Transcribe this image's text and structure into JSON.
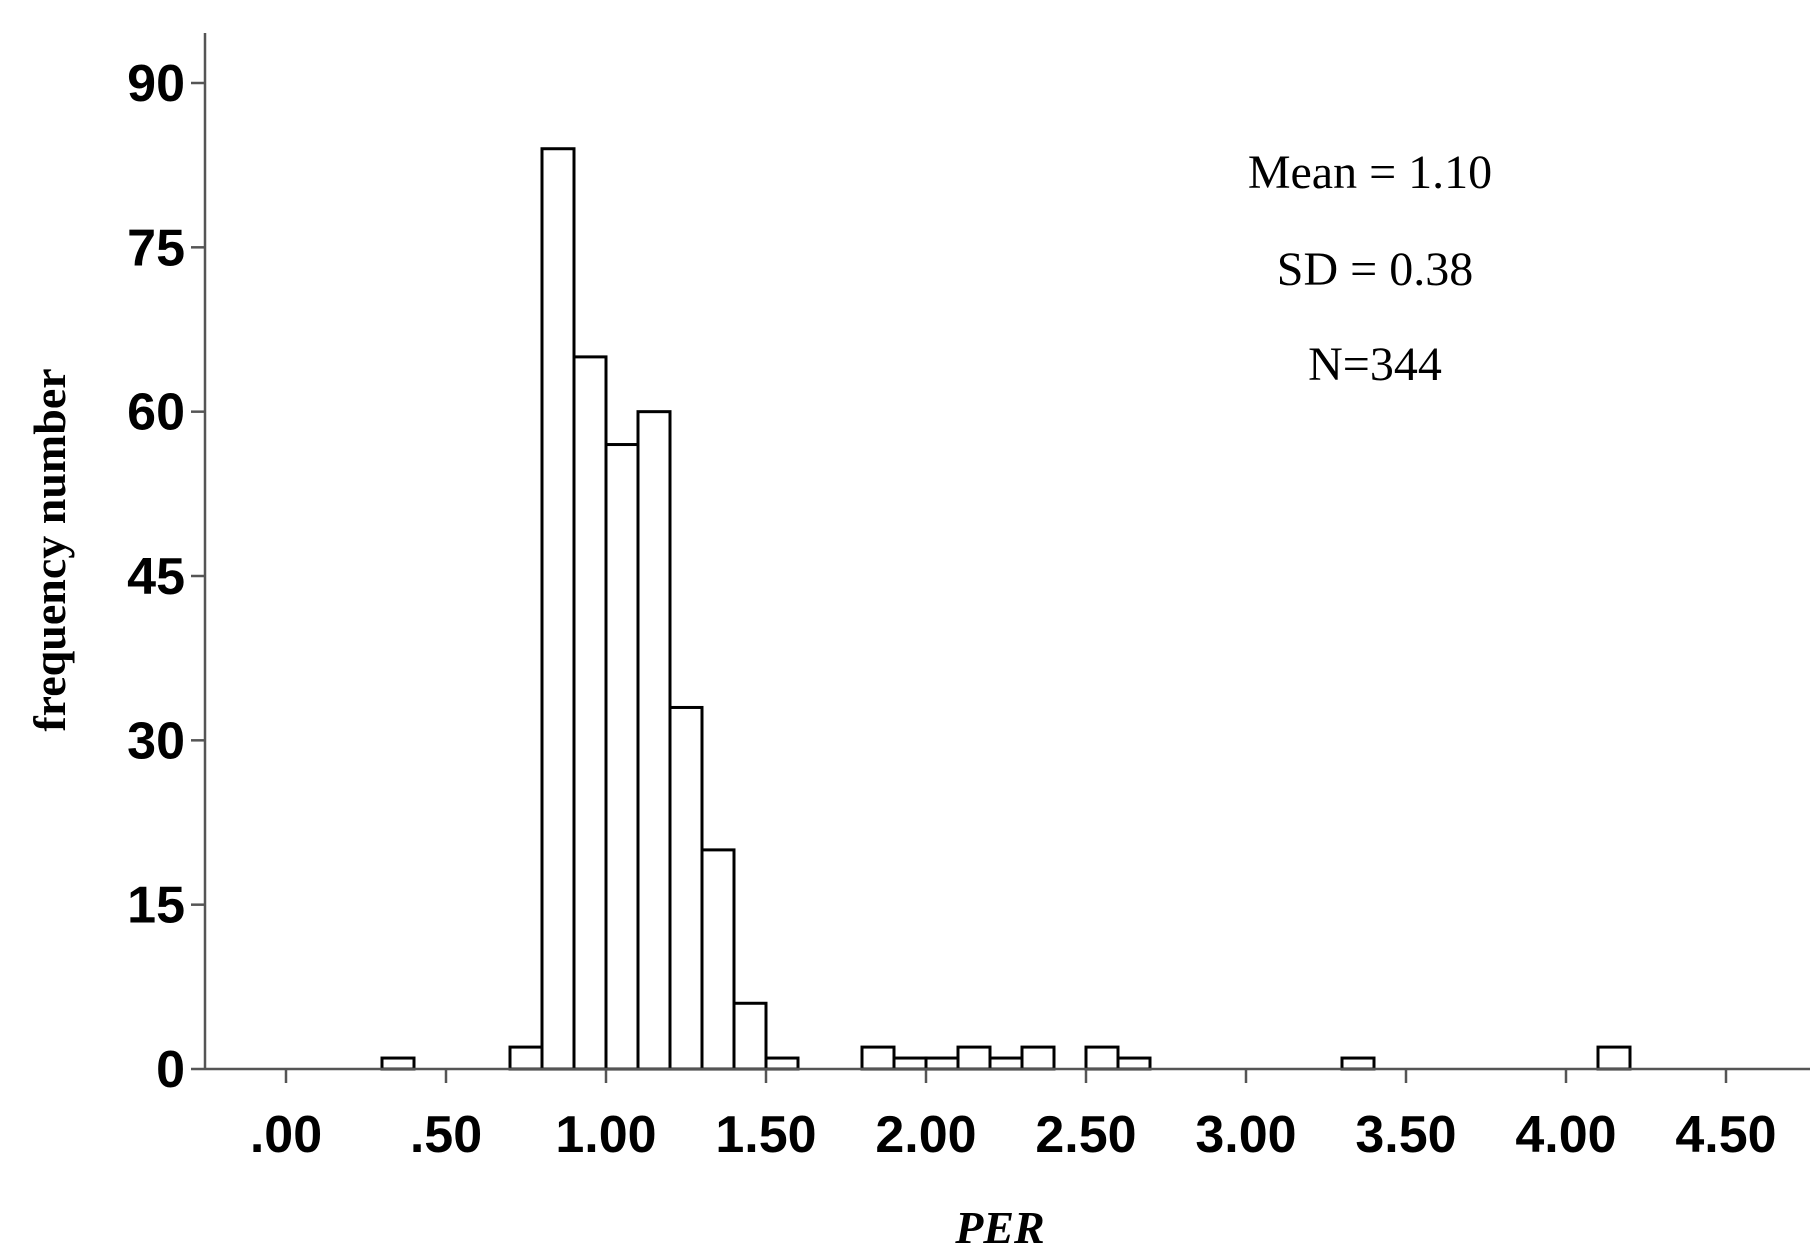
{
  "chart_data": {
    "type": "bar",
    "xlabel": "PER",
    "ylabel": "frequency number",
    "xlim": [
      -0.25,
      4.75
    ],
    "ylim": [
      0,
      90
    ],
    "x_ticks": [
      0,
      0.5,
      1.0,
      1.5,
      2.0,
      2.5,
      3.0,
      3.5,
      4.0,
      4.5
    ],
    "x_tick_labels": [
      ".00",
      ".50",
      "1.00",
      "1.50",
      "2.00",
      "2.50",
      "3.00",
      "3.50",
      "4.00",
      "4.50"
    ],
    "y_ticks": [
      0,
      15,
      30,
      45,
      60,
      75,
      90
    ],
    "y_tick_labels": [
      "0",
      "15",
      "30",
      "45",
      "60",
      "75",
      "90"
    ],
    "bin_width": 0.1,
    "bins": [
      {
        "start": 0.3,
        "count": 1
      },
      {
        "start": 0.7,
        "count": 2
      },
      {
        "start": 0.8,
        "count": 84
      },
      {
        "start": 0.9,
        "count": 65
      },
      {
        "start": 1.0,
        "count": 57
      },
      {
        "start": 1.1,
        "count": 60
      },
      {
        "start": 1.2,
        "count": 33
      },
      {
        "start": 1.3,
        "count": 20
      },
      {
        "start": 1.4,
        "count": 6
      },
      {
        "start": 1.5,
        "count": 1
      },
      {
        "start": 1.8,
        "count": 2
      },
      {
        "start": 1.9,
        "count": 1
      },
      {
        "start": 2.0,
        "count": 1
      },
      {
        "start": 2.1,
        "count": 2
      },
      {
        "start": 2.2,
        "count": 1
      },
      {
        "start": 2.3,
        "count": 2
      },
      {
        "start": 2.5,
        "count": 2
      },
      {
        "start": 2.6,
        "count": 1
      },
      {
        "start": 3.3,
        "count": 1
      },
      {
        "start": 4.1,
        "count": 2
      }
    ],
    "annotations": [
      "Mean = 1.10",
      "SD = 0.38",
      "N=344"
    ],
    "grid": false
  }
}
